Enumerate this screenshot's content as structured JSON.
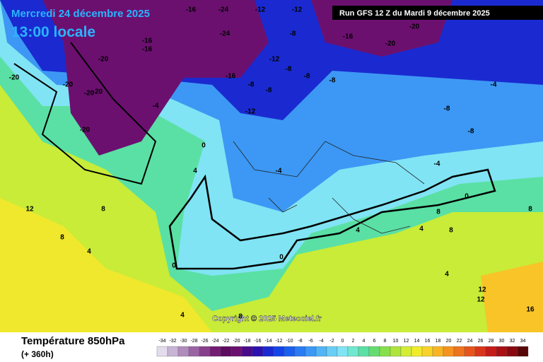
{
  "header": {
    "date": "Mercredi 24 décembre 2025",
    "time": "13:00 locale",
    "run": "Run GFS 12 Z du Mardi 9 décembre 2025"
  },
  "copyright": "Copyright © 2025 Meteociel.fr",
  "footer": {
    "title": "Température 850hPa",
    "lead": "(+ 360h)"
  },
  "scale": {
    "values": [
      -34,
      -32,
      -30,
      -28,
      -26,
      -24,
      -22,
      -20,
      -18,
      -16,
      -14,
      -12,
      -10,
      -8,
      -6,
      -4,
      -2,
      0,
      2,
      4,
      6,
      8,
      10,
      12,
      14,
      16,
      18,
      20,
      22,
      24,
      26,
      28,
      30,
      32,
      34
    ],
    "colors": [
      "#e4dcec",
      "#c8b4d4",
      "#b08cbc",
      "#9a64a4",
      "#86408c",
      "#721c74",
      "#5e0a60",
      "#6c1070",
      "#4a0a8a",
      "#2c10b0",
      "#1a2ad0",
      "#1444e8",
      "#1a60f0",
      "#2a7cf4",
      "#3c98f4",
      "#50b4f6",
      "#68cef6",
      "#80e4f4",
      "#70e8d0",
      "#5ae0a4",
      "#66dc70",
      "#86e04c",
      "#aee43c",
      "#d4ec34",
      "#f0ec2c",
      "#f8d428",
      "#f8b424",
      "#f49420",
      "#ee741e",
      "#e6541c",
      "#d8361a",
      "#c41c18",
      "#a81014",
      "#880a10",
      "#580608"
    ]
  },
  "contour_labels": [
    "-16",
    "-24",
    "-12",
    "-12",
    "-20",
    "-16",
    "-20",
    "-24",
    "-20",
    "-16",
    "-20",
    "-16",
    "-20",
    "-20",
    "-16",
    "-8",
    "-12",
    "-8",
    "-8",
    "-8",
    "-8",
    "-12",
    "-4",
    "-8",
    "-4",
    "-8",
    "-8",
    "-4",
    "0",
    "4",
    "8",
    "12",
    "8",
    "4",
    "0",
    "0",
    "4",
    "8",
    "12",
    "16",
    "4",
    "4",
    "8",
    "12",
    "8",
    "4",
    "0",
    "8",
    "-4",
    "-20",
    "-20"
  ]
}
